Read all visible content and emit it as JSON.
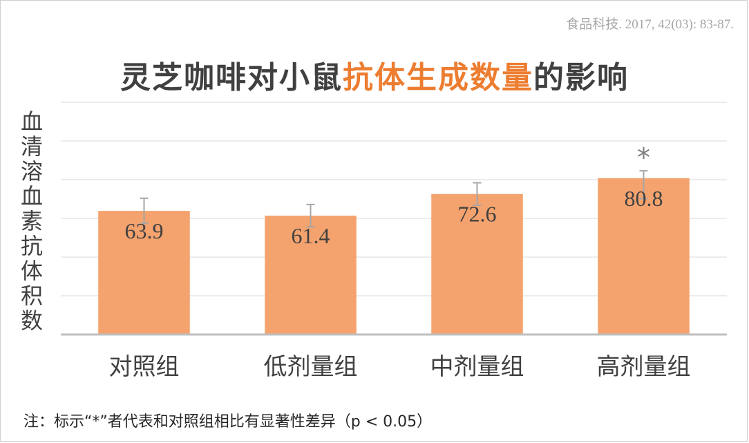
{
  "source_citation": "食品科技. 2017, 42(03): 83-87.",
  "footnote": "注：标示“*”者代表和对照组相比有显著性差异（p < 0.05）",
  "colors": {
    "bar": "#f4a36e",
    "title_highlight": "#ed7d31",
    "error_bar": "#a6a6a6",
    "grid": "#e6e6e6",
    "axis": "#bfbfbf",
    "text": "#404040"
  },
  "chart_data": {
    "type": "bar",
    "title_parts": [
      {
        "text": "灵芝咖啡对小鼠",
        "highlight": false
      },
      {
        "text": "抗体生成数量",
        "highlight": true
      },
      {
        "text": "的影响",
        "highlight": false
      }
    ],
    "ylabel": "血清溶血素抗体积数",
    "xlabel": "",
    "categories": [
      "对照组",
      "低剂量组",
      "中剂量组",
      "高剂量组"
    ],
    "values": [
      63.9,
      61.4,
      72.6,
      80.8
    ],
    "value_labels": [
      "63.9",
      "61.4",
      "72.6",
      "80.8"
    ],
    "error_upper": [
      70.4,
      67.2,
      78.4,
      84.6
    ],
    "error_lower": [
      57.4,
      55.6,
      66.8,
      70.2
    ],
    "significance_marker": "*",
    "significant": [
      false,
      false,
      false,
      true
    ],
    "ylim": [
      0,
      120
    ],
    "grid": true,
    "tick_labels_visible": false
  }
}
